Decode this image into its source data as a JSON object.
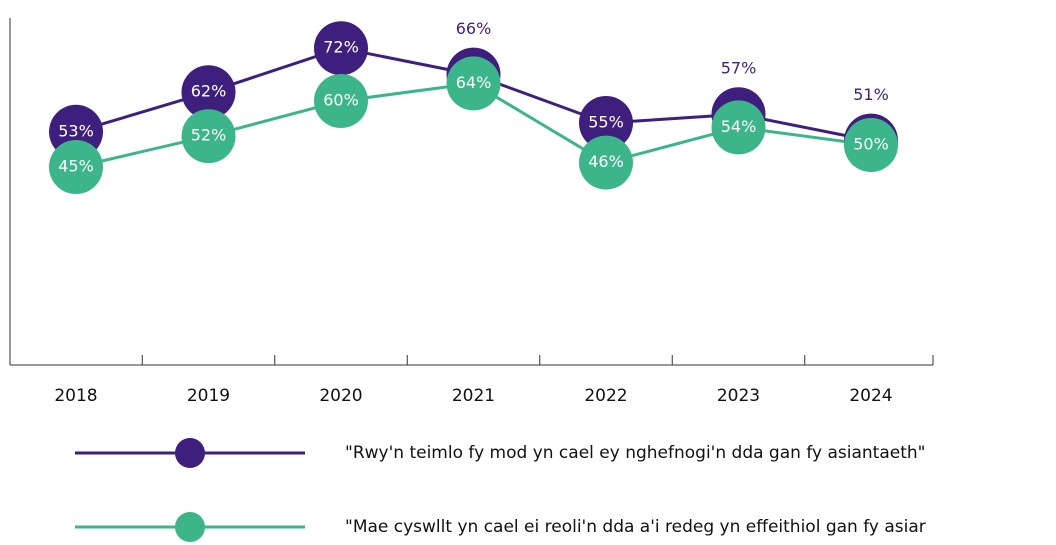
{
  "chart_data": {
    "type": "line",
    "categories": [
      "2018",
      "2019",
      "2020",
      "2021",
      "2022",
      "2023",
      "2024"
    ],
    "series": [
      {
        "name": "\"Rwy'n teimlo fy mod yn cael ey nghefnogi'n dda gan fy asiantaeth\"",
        "color": "#3f1f7e",
        "values": [
          53,
          62,
          72,
          66,
          55,
          57,
          51
        ],
        "value_labels": [
          "53%",
          "62%",
          "72%",
          "66%",
          "55%",
          "57%",
          "51%"
        ]
      },
      {
        "name": "\"Mae cyswllt yn cael ei reoli'n dda a'i redeg yn effeithiol gan fy asiar",
        "color": "#3db58a",
        "values": [
          45,
          52,
          60,
          64,
          46,
          54,
          50
        ],
        "value_labels": [
          "45%",
          "52%",
          "60%",
          "64%",
          "46%",
          "54%",
          "50%"
        ]
      }
    ],
    "ylim": [
      0,
      80
    ]
  }
}
